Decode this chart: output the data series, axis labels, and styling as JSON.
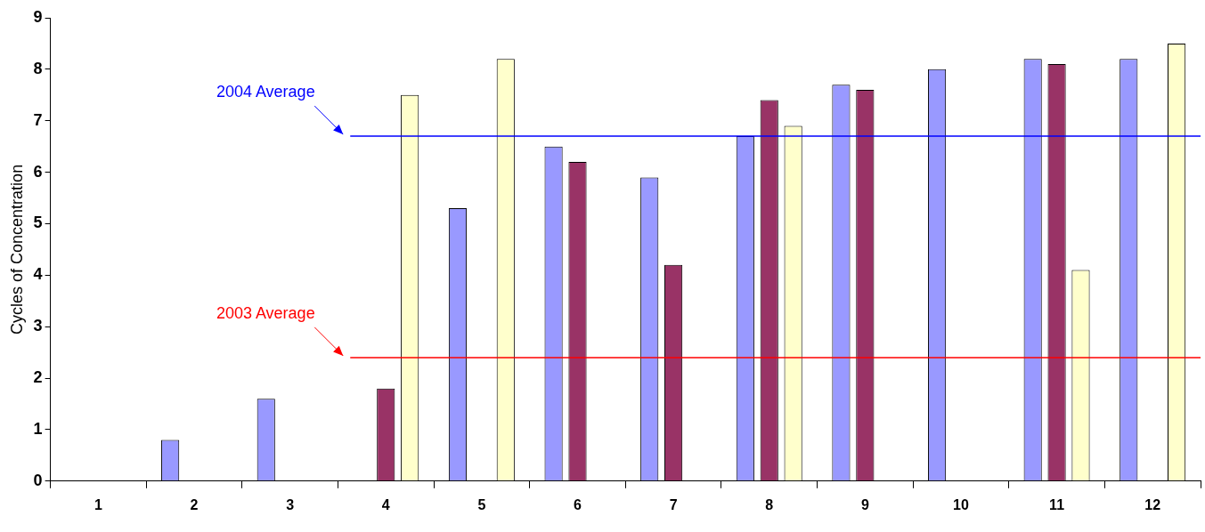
{
  "chart_data": {
    "type": "bar",
    "ylabel": "Cycles of Concentration",
    "categories": [
      "1",
      "2",
      "3",
      "4",
      "5",
      "6",
      "7",
      "8",
      "9",
      "10",
      "11",
      "12"
    ],
    "series": [
      {
        "color": "#9999ff",
        "values": [
          null,
          0.8,
          1.6,
          null,
          5.3,
          6.5,
          5.9,
          6.7,
          7.7,
          8.0,
          8.2,
          8.2
        ]
      },
      {
        "color": "#993366",
        "values": [
          null,
          null,
          null,
          1.8,
          null,
          6.2,
          4.2,
          7.4,
          7.6,
          null,
          8.1,
          null
        ]
      },
      {
        "color": "#ffffcc",
        "values": [
          null,
          null,
          null,
          7.5,
          8.2,
          null,
          null,
          6.9,
          null,
          null,
          4.1,
          8.5
        ]
      }
    ],
    "ylim": [
      0,
      9
    ],
    "yticks": [
      0,
      1,
      2,
      3,
      4,
      5,
      6,
      7,
      8,
      9
    ],
    "grid": false,
    "legend": false,
    "ref_lines": [
      {
        "axis": "y",
        "value": 6.7,
        "label": "2004 Average",
        "color": "#0000ff"
      },
      {
        "axis": "y",
        "value": 2.4,
        "label": "2003 Average",
        "color": "#ff0000"
      }
    ]
  }
}
